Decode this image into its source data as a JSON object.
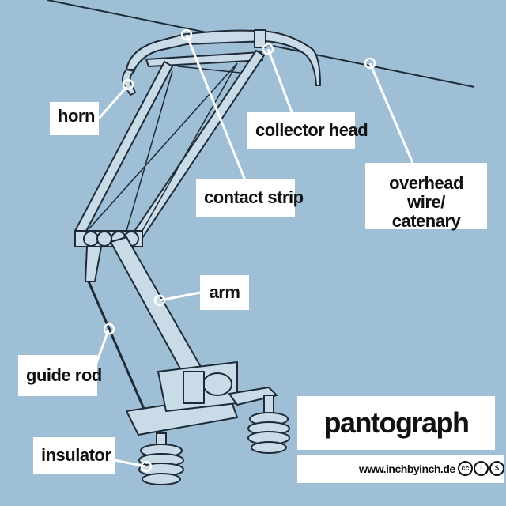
{
  "labels": {
    "horn": "horn",
    "contact_strip": "contact strip",
    "collector_head": "collector head",
    "overhead_wire_line1": "overhead wire/",
    "overhead_wire_line2": "catenary",
    "arm": "arm",
    "guide_rod": "guide rod",
    "insulator": "insulator"
  },
  "title": "pantograph",
  "website": "www.inchbyinch.de",
  "license_icons": [
    "cc-icon",
    "by-icon",
    "nc-icon"
  ],
  "colors": {
    "background": "#9fbfd6",
    "line": "#1e2a36",
    "metal": "#c9dbe7",
    "label_bg": "#ffffff"
  }
}
